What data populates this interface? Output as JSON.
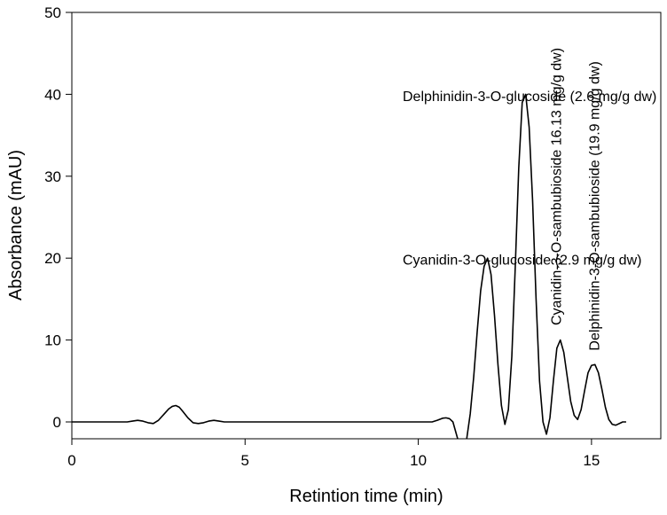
{
  "chart_data": {
    "type": "line",
    "title": "",
    "xlabel": "Retintion time (min)",
    "ylabel": "Absorbance (mAU)",
    "xlim": [
      0,
      17
    ],
    "ylim": [
      0,
      50
    ],
    "x_ticks": [
      0,
      5,
      10,
      15
    ],
    "y_ticks": [
      0,
      10,
      20,
      30,
      40,
      50
    ],
    "grid": false,
    "series": [
      {
        "x": [
          0,
          1.6,
          1.75,
          1.9,
          2.05,
          2.2,
          2.35,
          2.5,
          2.65,
          2.8,
          2.9,
          3.0,
          3.1,
          3.2,
          3.35,
          3.5,
          3.65,
          3.8,
          3.95,
          4.1,
          4.25,
          4.4,
          4.6,
          10.4,
          10.55,
          10.7,
          10.8,
          10.9,
          11.0,
          11.1,
          11.2,
          11.3,
          11.4,
          11.5,
          11.6,
          11.7,
          11.8,
          11.9,
          12.0,
          12.1,
          12.2,
          12.3,
          12.4,
          12.5,
          12.6,
          12.7,
          12.8,
          12.9,
          13.0,
          13.1,
          13.2,
          13.3,
          13.4,
          13.5,
          13.6,
          13.7,
          13.8,
          13.9,
          14.0,
          14.1,
          14.2,
          14.3,
          14.4,
          14.5,
          14.6,
          14.7,
          14.8,
          14.9,
          15.0,
          15.1,
          15.2,
          15.3,
          15.4,
          15.5,
          15.6,
          15.7,
          15.8,
          15.9,
          16.0
        ],
        "y": [
          0,
          0,
          0.1,
          0.2,
          0.1,
          -0.1,
          -0.2,
          0.2,
          0.9,
          1.6,
          1.9,
          2.0,
          1.8,
          1.3,
          0.5,
          -0.1,
          -0.2,
          -0.1,
          0.1,
          0.2,
          0.1,
          0,
          0,
          0,
          0.2,
          0.45,
          0.5,
          0.4,
          0,
          -1.5,
          -3.0,
          -3.5,
          -2.0,
          1.0,
          5.5,
          11.0,
          16.0,
          19.0,
          20.0,
          18.0,
          13.0,
          7.0,
          2.0,
          -0.3,
          1.5,
          8.0,
          19.0,
          31.0,
          39.0,
          40.0,
          36.0,
          27.0,
          15.0,
          5.0,
          0,
          -1.5,
          0.5,
          5.0,
          9.0,
          10.0,
          8.5,
          5.5,
          2.5,
          0.8,
          0.3,
          1.5,
          3.8,
          6.0,
          6.9,
          7.0,
          6.0,
          4.0,
          1.8,
          0.3,
          -0.3,
          -0.4,
          -0.2,
          0,
          0
        ]
      }
    ],
    "annotations": [
      {
        "text": "Delphinidin-3-O-glucoside (2.6 mg/g dw)",
        "x": 9.55,
        "y": 39.2,
        "rotate": 0
      },
      {
        "text": "Cyanidin-3-O-glucoside (2.9 mg/g dw)",
        "x": 9.55,
        "y": 19.2,
        "rotate": 0
      },
      {
        "text": "Cyanidin-3-O-sambubioside 16.13 mg/g dw)",
        "x": 14.12,
        "y": 11.8,
        "rotate": -90
      },
      {
        "text": "Delphinidin-3-O-sambubioside (19.9 mg/g dw)",
        "x": 15.22,
        "y": 8.7,
        "rotate": -90
      }
    ]
  }
}
